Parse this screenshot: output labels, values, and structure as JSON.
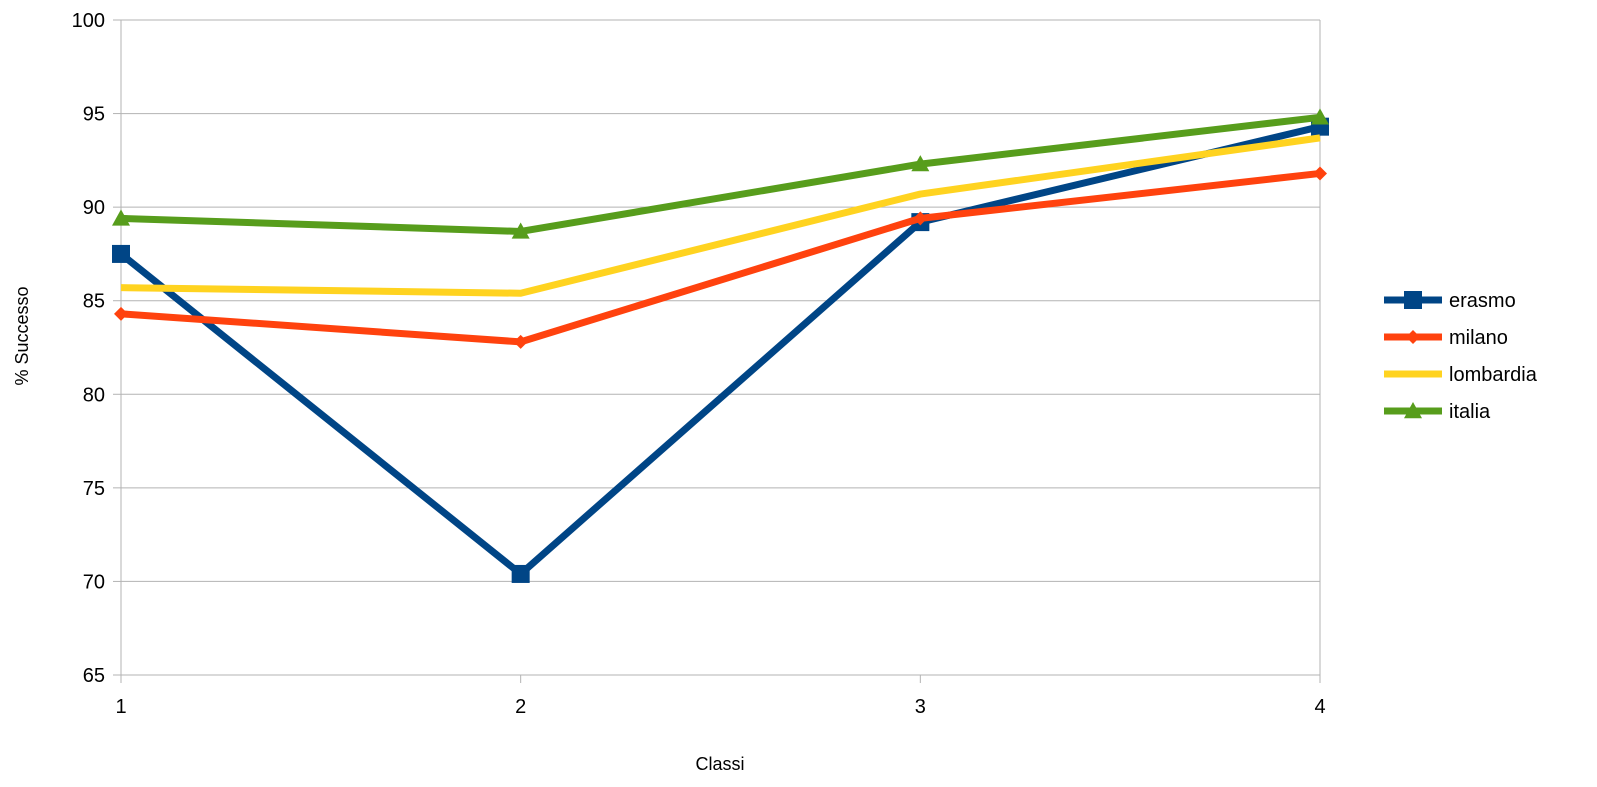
{
  "chart_data": {
    "type": "line",
    "title": "",
    "xlabel": "Classi",
    "ylabel": "% Successo",
    "x": [
      1,
      2,
      3,
      4
    ],
    "xlim": [
      1,
      4
    ],
    "ylim": [
      65,
      100
    ],
    "yticks": [
      65,
      70,
      75,
      80,
      85,
      90,
      95,
      100
    ],
    "grid": "horizontal",
    "legend_position": "right",
    "series": [
      {
        "name": "erasmo",
        "color": "#004586",
        "marker": "square",
        "values": [
          87.5,
          70.4,
          89.2,
          94.3
        ]
      },
      {
        "name": "milano",
        "color": "#ff420e",
        "marker": "diamond",
        "values": [
          84.3,
          82.8,
          89.4,
          91.8
        ]
      },
      {
        "name": "lombardia",
        "color": "#ffd320",
        "marker": "none",
        "values": [
          85.7,
          85.4,
          90.7,
          93.7
        ]
      },
      {
        "name": "italia",
        "color": "#579d1c",
        "marker": "triangle",
        "values": [
          89.4,
          88.7,
          92.3,
          94.8
        ]
      }
    ]
  }
}
